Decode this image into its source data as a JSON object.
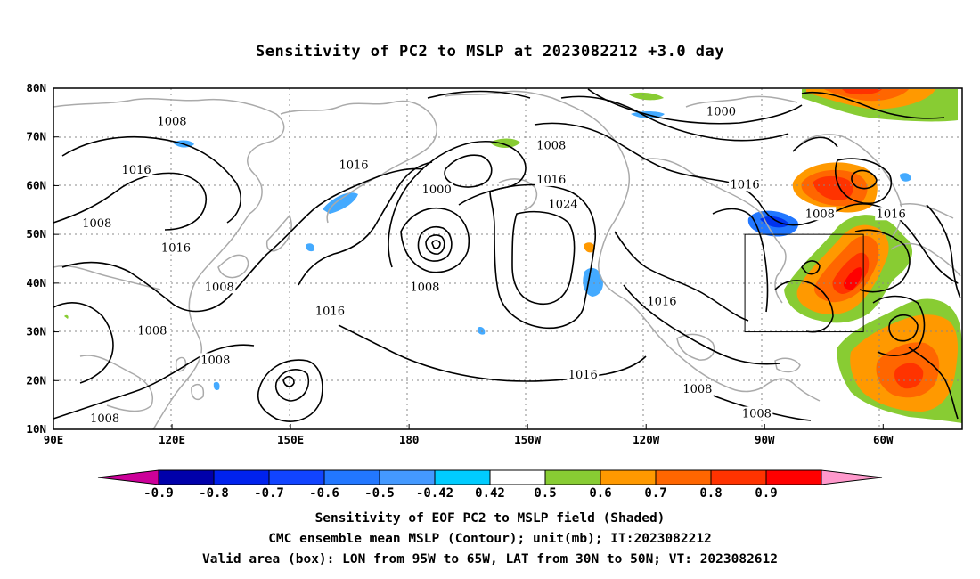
{
  "title": "Sensitivity of PC2 to MSLP at 2023082212 +3.0 day",
  "map": {
    "lat_labels": [
      "80N",
      "70N",
      "60N",
      "50N",
      "40N",
      "30N",
      "20N",
      "10N"
    ],
    "lon_labels": [
      "90E",
      "120E",
      "150E",
      "180",
      "150W",
      "120W",
      "90W",
      "60W"
    ],
    "contour_labels": [
      {
        "text": "1008",
        "lon": 120,
        "lat": 73
      },
      {
        "text": "1016",
        "lon": 111,
        "lat": 63
      },
      {
        "text": "1008",
        "lon": 101,
        "lat": 52
      },
      {
        "text": "1016",
        "lon": 121,
        "lat": 47
      },
      {
        "text": "1008",
        "lon": 132,
        "lat": 39
      },
      {
        "text": "1016",
        "lon": 160,
        "lat": 34
      },
      {
        "text": "1008",
        "lon": 115,
        "lat": 30
      },
      {
        "text": "1008",
        "lon": 131,
        "lat": 24
      },
      {
        "text": "1008",
        "lon": 103,
        "lat": 12
      },
      {
        "text": "1016",
        "lon": 166,
        "lat": 64
      },
      {
        "text": "1000",
        "lon": 187,
        "lat": 59
      },
      {
        "text": "1008",
        "lon": 184,
        "lat": 39
      },
      {
        "text": "1008",
        "lon": 216,
        "lat": 68
      },
      {
        "text": "1016",
        "lon": 216,
        "lat": 61
      },
      {
        "text": "1024",
        "lon": 219,
        "lat": 56
      },
      {
        "text": "1016",
        "lon": 224,
        "lat": 21
      },
      {
        "text": "1000",
        "lon": 259,
        "lat": 75
      },
      {
        "text": "1016",
        "lon": 265,
        "lat": 60
      },
      {
        "text": "1008",
        "lon": 284,
        "lat": 54
      },
      {
        "text": "1016",
        "lon": 302,
        "lat": 54
      },
      {
        "text": "1016",
        "lon": 244,
        "lat": 36
      },
      {
        "text": "1008",
        "lon": 253,
        "lat": 18
      },
      {
        "text": "1008",
        "lon": 268,
        "lat": 13
      }
    ],
    "valid_box": {
      "lon_west": -95,
      "lon_east": -65,
      "lat_south": 30,
      "lat_north": 50
    }
  },
  "colorbar": {
    "labels": [
      "-0.9",
      "-0.8",
      "-0.7",
      "-0.6",
      "-0.5",
      "-0.42",
      "0.42",
      "0.5",
      "0.6",
      "0.7",
      "0.8",
      "0.9"
    ],
    "colors": [
      "#cc0099",
      "#0000aa",
      "#0022ee",
      "#1144ff",
      "#2277ff",
      "#4499ff",
      "#00ccff",
      "#ffffff",
      "#88cc33",
      "#ff9900",
      "#ff6600",
      "#ff3300",
      "#ff0000",
      "#ff99cc"
    ]
  },
  "captions": {
    "line1": "Sensitivity of EOF PC2 to MSLP field (Shaded)",
    "line2": "CMC ensemble mean MSLP (Contour); unit(mb); IT:2023082212",
    "line3": "Valid area (box): LON from 95W to 65W, LAT from 30N to 50N; VT: 2023082612"
  }
}
